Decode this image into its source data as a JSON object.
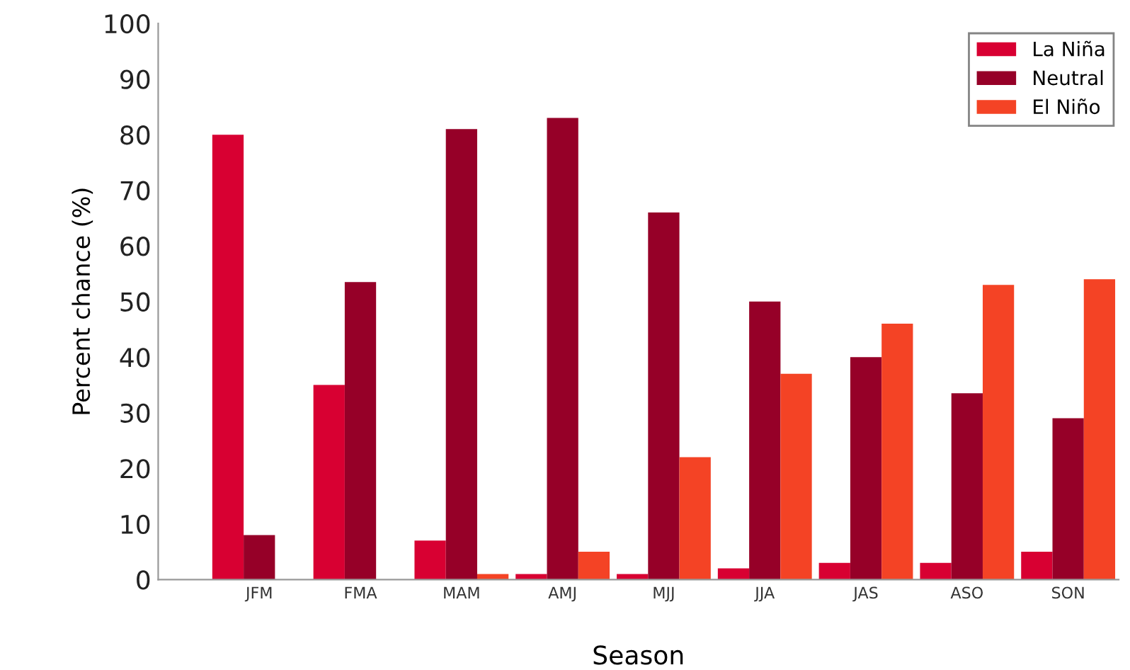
{
  "chart_data": {
    "type": "bar",
    "xlabel": "Season",
    "ylabel": "Percent chance (%)",
    "categories": [
      "JFM",
      "FMA",
      "MAM",
      "AMJ",
      "MJJ",
      "JJA",
      "JAS",
      "ASO",
      "SON"
    ],
    "series": [
      {
        "name": "La Niña",
        "color": "#d80032",
        "values": [
          80,
          35,
          7,
          1,
          1,
          2,
          3,
          3,
          5
        ]
      },
      {
        "name": "Neutral",
        "color": "#960028",
        "values": [
          8,
          53.5,
          81,
          83,
          66,
          50,
          40,
          33.5,
          29
        ]
      },
      {
        "name": "El Niño",
        "color": "#f44325",
        "values": [
          0,
          0,
          1,
          5,
          22,
          37,
          46,
          53,
          54
        ]
      }
    ],
    "ylim": [
      0,
      100
    ],
    "yticks": [
      0,
      10,
      20,
      30,
      40,
      50,
      60,
      70,
      80,
      90,
      100
    ],
    "grid": false,
    "legend": "top right"
  }
}
